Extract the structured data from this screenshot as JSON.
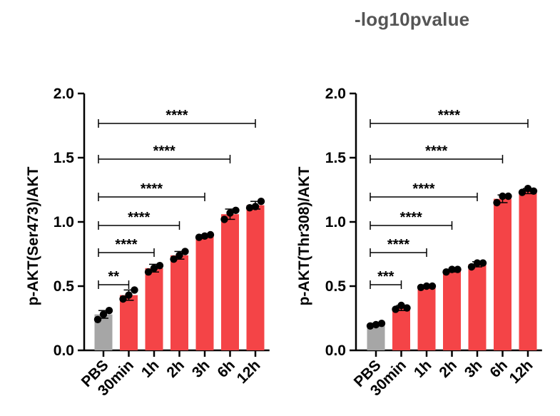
{
  "page": {
    "title": "-log10pvalue"
  },
  "chart_data": [
    {
      "type": "bar",
      "title": "",
      "xlabel": "",
      "ylabel": "p-AKT(Ser473)/AKT",
      "ylim": [
        0,
        2.0
      ],
      "yticks": [
        0.0,
        0.5,
        1.0,
        1.5,
        2.0
      ],
      "ytick_labels": [
        "0.0",
        "0.5",
        "1.0",
        "1.5",
        "2.0"
      ],
      "categories": [
        "PBS",
        "30min",
        "1h",
        "2h",
        "3h",
        "6h",
        "12h"
      ],
      "values": [
        0.28,
        0.43,
        0.64,
        0.74,
        0.89,
        1.06,
        1.13
      ],
      "errors": [
        0.03,
        0.04,
        0.03,
        0.03,
        0.01,
        0.04,
        0.03
      ],
      "points": [
        [
          0.24,
          0.28,
          0.31
        ],
        [
          0.4,
          0.43,
          0.47
        ],
        [
          0.61,
          0.64,
          0.66
        ],
        [
          0.71,
          0.74,
          0.77
        ],
        [
          0.88,
          0.89,
          0.9
        ],
        [
          1.02,
          1.07,
          1.09
        ],
        [
          1.11,
          1.12,
          1.16
        ]
      ],
      "bar_colors": [
        "#a6a6a6",
        "#f44447",
        "#f44447",
        "#f44447",
        "#f44447",
        "#f44447",
        "#f44447"
      ],
      "comparisons": [
        {
          "from": "PBS",
          "to": "30min",
          "label": "**"
        },
        {
          "from": "PBS",
          "to": "1h",
          "label": "****"
        },
        {
          "from": "PBS",
          "to": "2h",
          "label": "****"
        },
        {
          "from": "PBS",
          "to": "3h",
          "label": "****"
        },
        {
          "from": "PBS",
          "to": "6h",
          "label": "****"
        },
        {
          "from": "PBS",
          "to": "12h",
          "label": "****"
        }
      ],
      "grid": false,
      "legend": "none"
    },
    {
      "type": "bar",
      "title": "",
      "xlabel": "",
      "ylabel": "p-AKT(Thr308)/AKT",
      "ylim": [
        0,
        2.0
      ],
      "yticks": [
        0.0,
        0.5,
        1.0,
        1.5,
        2.0
      ],
      "ytick_labels": [
        "0.0",
        "0.5",
        "1.0",
        "1.5",
        "2.0"
      ],
      "categories": [
        "PBS",
        "30min",
        "1h",
        "2h",
        "3h",
        "6h",
        "12h"
      ],
      "values": [
        0.2,
        0.33,
        0.5,
        0.62,
        0.67,
        1.18,
        1.24
      ],
      "errors": [
        0.01,
        0.02,
        0.01,
        0.01,
        0.02,
        0.03,
        0.02
      ],
      "points": [
        [
          0.19,
          0.2,
          0.21
        ],
        [
          0.32,
          0.35,
          0.33
        ],
        [
          0.49,
          0.5,
          0.5
        ],
        [
          0.61,
          0.63,
          0.63
        ],
        [
          0.65,
          0.68,
          0.68
        ],
        [
          1.15,
          1.2,
          1.2
        ],
        [
          1.23,
          1.26,
          1.24
        ]
      ],
      "bar_colors": [
        "#a6a6a6",
        "#f44447",
        "#f44447",
        "#f44447",
        "#f44447",
        "#f44447",
        "#f44447"
      ],
      "comparisons": [
        {
          "from": "PBS",
          "to": "30min",
          "label": "***"
        },
        {
          "from": "PBS",
          "to": "1h",
          "label": "****"
        },
        {
          "from": "PBS",
          "to": "2h",
          "label": "****"
        },
        {
          "from": "PBS",
          "to": "3h",
          "label": "****"
        },
        {
          "from": "PBS",
          "to": "6h",
          "label": "****"
        },
        {
          "from": "PBS",
          "to": "12h",
          "label": "****"
        }
      ],
      "grid": false,
      "legend": "none"
    }
  ]
}
